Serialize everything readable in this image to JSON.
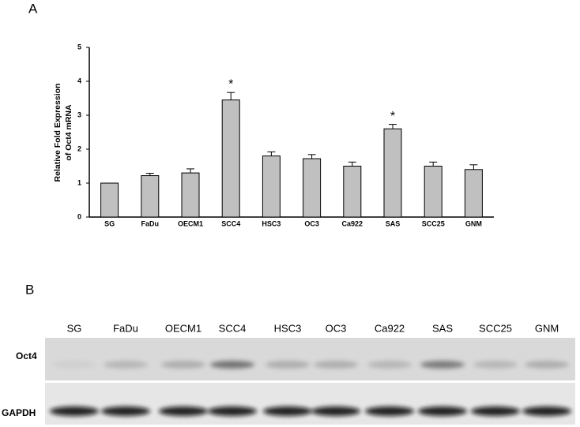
{
  "panel_a": "A",
  "panel_b": "B",
  "chart_data": {
    "type": "bar",
    "ylabel": [
      "Relative Fold Expression",
      "of Oct4 mRNA"
    ],
    "categories": [
      "SG",
      "FaDu",
      "OECM1",
      "SCC4",
      "HSC3",
      "OC3",
      "Ca922",
      "SAS",
      "SCC25",
      "GNM"
    ],
    "values": [
      1.0,
      1.22,
      1.3,
      3.45,
      1.8,
      1.72,
      1.5,
      2.6,
      1.5,
      1.4
    ],
    "errors": [
      0,
      0.07,
      0.12,
      0.22,
      0.12,
      0.12,
      0.12,
      0.13,
      0.12,
      0.14
    ],
    "color": "#c0c0c0",
    "ylim": [
      0,
      5
    ],
    "yticks": [
      0,
      1,
      2,
      3,
      4,
      5
    ],
    "annotations": [
      {
        "text": "*",
        "x": "SCC4"
      },
      {
        "text": "*",
        "x": "SAS"
      }
    ]
  },
  "blot": {
    "lanes": [
      "SG",
      "FaDu",
      "OECM1",
      "SCC4",
      "HSC3",
      "OC3",
      "Ca922",
      "SAS",
      "SCC25",
      "GNM"
    ],
    "rows": [
      "Oct4",
      "GAPDH"
    ]
  }
}
